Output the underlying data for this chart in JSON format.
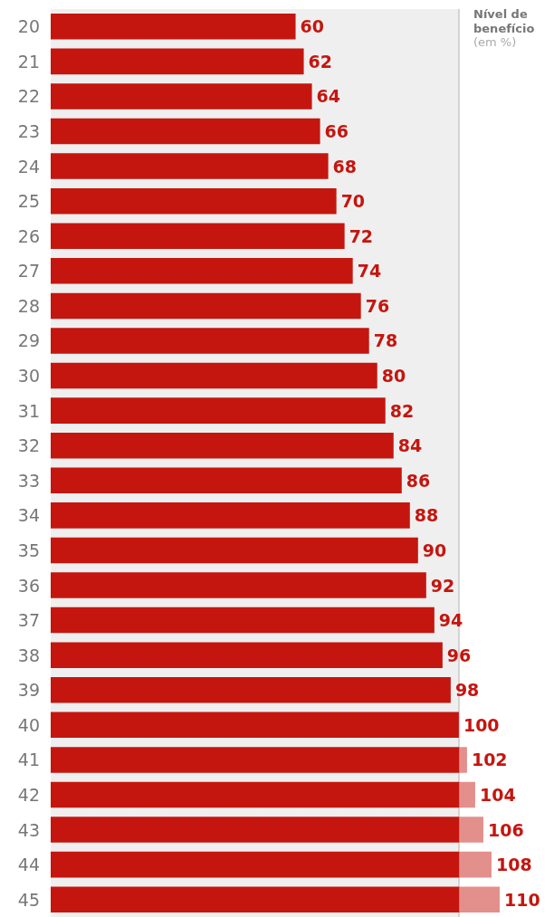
{
  "chart_data": {
    "type": "bar",
    "orientation": "horizontal",
    "title": "Nível de benefício",
    "subtitle": "(em %)",
    "categories": [
      "20",
      "21",
      "22",
      "23",
      "24",
      "25",
      "26",
      "27",
      "28",
      "29",
      "30",
      "31",
      "32",
      "33",
      "34",
      "35",
      "36",
      "37",
      "38",
      "39",
      "40",
      "41",
      "42",
      "43",
      "44",
      "45"
    ],
    "series": [
      {
        "color": "#c4160f",
        "values": [
          60,
          62,
          64,
          66,
          68,
          70,
          72,
          74,
          76,
          78,
          80,
          82,
          84,
          86,
          88,
          90,
          92,
          94,
          96,
          98,
          100,
          102,
          104,
          106,
          108,
          110
        ]
      }
    ],
    "data_labels": true,
    "xlim": [
      0,
      110
    ],
    "tick_labels": "y",
    "bands": [
      {
        "axis": "x",
        "from": 0,
        "to": 100,
        "color": "#efefef"
      }
    ],
    "ref_lines": [
      {
        "axis": "x",
        "value": 100,
        "color": "#c8c8c8"
      }
    ]
  }
}
